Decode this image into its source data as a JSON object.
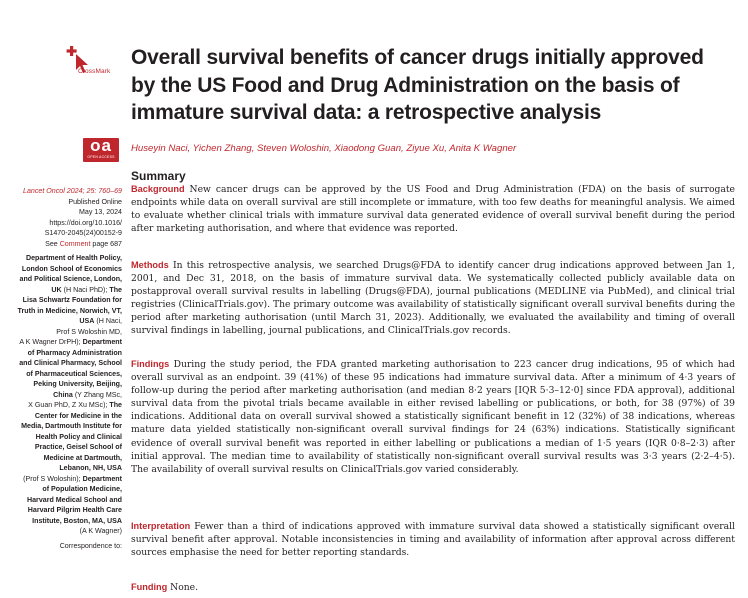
{
  "crossmark": {
    "label": "CrossMark"
  },
  "title": "Overall survival benefits of cancer drugs initially approved by the US Food and Drug Administration on the basis of immature survival data: a retrospective analysis",
  "oa_logo": {
    "text": "oa",
    "subtext": "OPEN ACCESS"
  },
  "authors": "Huseyin Naci, Yichen Zhang, Steven Woloshin, Xiaodong Guan, Ziyue Xu, Anita K Wagner",
  "sidebar": {
    "citation": "Lancet Oncol 2024; 25: 760–69",
    "pub_lines": [
      "Published Online",
      "May 13, 2024",
      "https://doi.org/10.1016/",
      "S1470-2045(24)00152-9"
    ],
    "see_prefix": "See ",
    "see_link": "Comment",
    "see_suffix": " page 687",
    "affiliations": [
      {
        "text": "Department of Health Policy,",
        "bold": true
      },
      {
        "text": "London School of Economics",
        "bold": true
      },
      {
        "text": "and Political Science, London,",
        "bold": true
      },
      {
        "text": "UK",
        "bold": true,
        "tail": " (H Naci PhD); ",
        "tail_bold": "The"
      },
      {
        "text": "Lisa Schwartz Foundation for",
        "bold": true
      },
      {
        "text": "Truth in Medicine, Norwich, VT,",
        "bold": true
      },
      {
        "text": "USA",
        "bold": true,
        "tail": " (H Naci,"
      },
      {
        "text": "Prof S Woloshin MD,",
        "bold": false
      },
      {
        "text": "A K Wagner DrPH); ",
        "bold": false,
        "tail_bold": "Department"
      },
      {
        "text": "of Pharmacy Administration",
        "bold": true
      },
      {
        "text": "and Clinical Pharmacy, School",
        "bold": true
      },
      {
        "text": "of Pharmaceutical Sciences,",
        "bold": true
      },
      {
        "text": "Peking University, Beijing,",
        "bold": true
      },
      {
        "text": "China",
        "bold": true,
        "tail": " (Y Zhang MSc,"
      },
      {
        "text": "X Guan PhD, Z Xu MSc); ",
        "bold": false,
        "tail_bold": "The"
      },
      {
        "text": "Center for Medicine in the",
        "bold": true
      },
      {
        "text": "Media, Dartmouth Institute for",
        "bold": true
      },
      {
        "text": "Health Policy and Clinical",
        "bold": true
      },
      {
        "text": "Practice, Geisel School of",
        "bold": true
      },
      {
        "text": "Medicine at Dartmouth,",
        "bold": true
      },
      {
        "text": "Lebanon, NH, USA",
        "bold": true
      },
      {
        "text": "(Prof S Woloshin); ",
        "bold": false,
        "tail_bold": "Department"
      },
      {
        "text": "of Population Medicine,",
        "bold": true
      },
      {
        "text": "Harvard Medical School and",
        "bold": true
      },
      {
        "text": "Harvard Pilgrim Health Care",
        "bold": true
      },
      {
        "text": "Institute, Boston, MA, USA",
        "bold": true
      },
      {
        "text": "(A K Wagner)",
        "bold": false
      }
    ],
    "correspondence": "Correspondence to:"
  },
  "summary": {
    "heading": "Summary",
    "background_label": "Background",
    "background_text": " New cancer drugs can be approved by the US Food and Drug Administration (FDA) on the basis of surrogate endpoints while data on overall survival are still incomplete or immature, with too few deaths for meaningful analysis. We aimed to evaluate whether clinical trials with immature survival data generated evidence of overall survival benefit during the period after marketing authorisation, and where that evidence was reported.",
    "methods_label": "Methods",
    "methods_text": " In this retrospective analysis, we searched Drugs@FDA to identify cancer drug indications approved between Jan 1, 2001, and Dec 31, 2018, on the basis of immature survival data. We systematically collected publicly available data on postapproval overall survival results in labelling (Drugs@FDA), journal publications (MEDLINE via PubMed), and clinical trial registries (ClinicalTrials.gov). The primary outcome was availability of statistically significant overall survival benefits during the period after marketing authorisation (until March 31, 2023). Additionally, we evaluated the availability and timing of overall survival findings in labelling, journal publications, and ClinicalTrials.gov records.",
    "findings_label": "Findings",
    "findings_text": " During the study period, the FDA granted marketing authorisation to 223 cancer drug indications, 95 of which had overall survival as an endpoint. 39 (41%) of these 95 indications had immature survival data. After a minimum of 4·3 years of follow-up during the period after marketing authorisation (and median 8·2 years [IQR 5·3–12·0] since FDA approval), additional survival data from the pivotal trials became available in either revised labelling or publications, or both, for 38 (97%) of 39 indications. Additional data on overall survival showed a statistically significant benefit in 12 (32%) of 38 indications, whereas mature data yielded statistically non-significant overall survival findings for 24 (63%) indications. Statistically significant evidence of overall survival benefit was reported in either labelling or publications a median of 1·5 years (IQR 0·8–2·3) after initial approval. The median time to availability of statistically non-significant overall survival results was 3·3 years (2·2–4·5). The availability of overall survival results on ClinicalTrials.gov varied considerably.",
    "interpretation_label": "Interpretation",
    "interpretation_text": " Fewer than a third of indications approved with immature survival data showed a statistically significant overall survival benefit after approval. Notable inconsistencies in timing and availability of information after approval across different sources emphasise the need for better reporting standards.",
    "funding_label": "Funding",
    "funding_text": " None."
  },
  "colors": {
    "accent": "#c0272d",
    "text": "#231f20"
  }
}
